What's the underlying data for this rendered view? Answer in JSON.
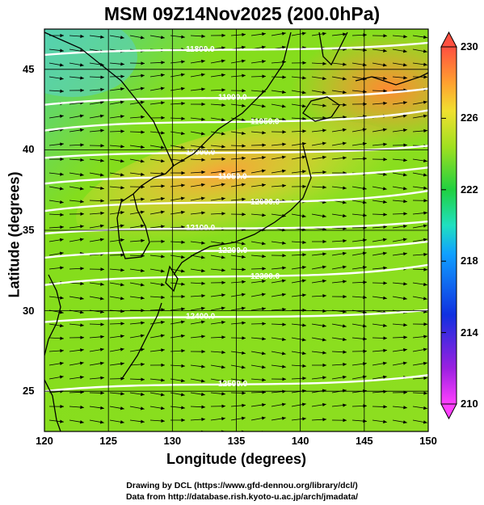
{
  "title": "MSM 09Z14Nov2025 (200.0hPa)",
  "axes": {
    "xlabel": "Longitude (degrees)",
    "ylabel": "Latitude  (degrees)",
    "xticks": [
      "120",
      "125",
      "130",
      "135",
      "140",
      "145",
      "150"
    ],
    "yticks": [
      "25",
      "30",
      "35",
      "40",
      "45"
    ],
    "xlim": [
      120,
      150
    ],
    "ylim": [
      22.5,
      47.5
    ]
  },
  "colorbar": {
    "ticks": [
      "210",
      "214",
      "218",
      "222",
      "226",
      "230"
    ],
    "range": [
      210,
      230
    ]
  },
  "contours": [
    {
      "label": "11800.0",
      "lat": 46.2
    },
    {
      "label": "11900.0",
      "lat": 43.2
    },
    {
      "label": "11950.0",
      "lat": 41.7
    },
    {
      "label": "12000.0",
      "lat": 39.8
    },
    {
      "label": "11950.0",
      "lat": 38.3
    },
    {
      "label": "12000.0",
      "lat": 36.7
    },
    {
      "label": "12100.0",
      "lat": 35.1
    },
    {
      "label": "12200.0",
      "lat": 33.7
    },
    {
      "label": "12300.0",
      "lat": 32.1
    },
    {
      "label": "12400.0",
      "lat": 29.6
    },
    {
      "label": "12500.0",
      "lat": 25.4
    }
  ],
  "credits": [
    "Drawing by DCL (https://www.gfd-dennou.org/library/dcl/)",
    "Data from http://database.rish.kyoto-u.ac.jp/arch/jmadata/"
  ]
}
